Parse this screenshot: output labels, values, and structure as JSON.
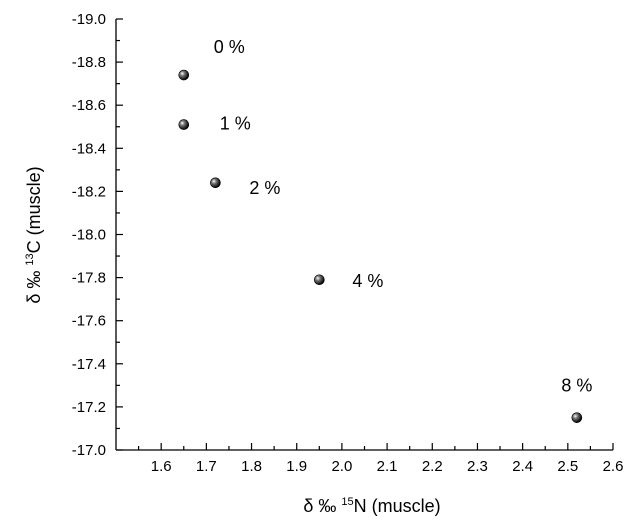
{
  "chart_data": {
    "type": "scatter",
    "xlabel": {
      "prefix": "δ ‰ ",
      "sup": "15",
      "suffix": "N (muscle)"
    },
    "ylabel": {
      "prefix": "δ ‰ ",
      "sup": "13",
      "suffix": "C (muscle)"
    },
    "xlim": [
      1.5,
      2.6
    ],
    "ylim": [
      -17.0,
      -19.0
    ],
    "y_axis_inverted": true,
    "x_ticks": [
      "1.6",
      "1.7",
      "1.8",
      "1.9",
      "2.0",
      "2.1",
      "2.2",
      "2.3",
      "2.4",
      "2.5",
      "2.6"
    ],
    "y_ticks": [
      "-19.0",
      "-18.8",
      "-18.6",
      "-18.4",
      "-18.2",
      "-18.0",
      "-17.8",
      "-17.6",
      "-17.4",
      "-17.2",
      "-17.0"
    ],
    "grid": false,
    "marker_color": "#000000",
    "points": [
      {
        "x": 1.65,
        "y": -18.74,
        "label": "0 %"
      },
      {
        "x": 1.65,
        "y": -18.51,
        "label": "1 %"
      },
      {
        "x": 1.72,
        "y": -18.24,
        "label": "2 %"
      },
      {
        "x": 1.95,
        "y": -17.79,
        "label": "4 %"
      },
      {
        "x": 2.52,
        "y": -17.15,
        "label": "8 %"
      }
    ]
  }
}
